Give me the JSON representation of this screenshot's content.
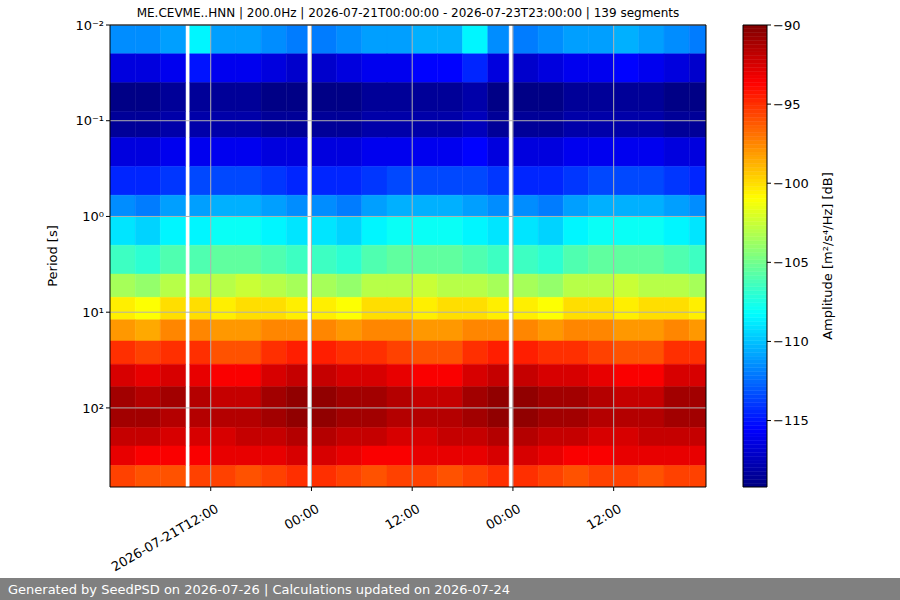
{
  "chart_data": {
    "type": "heatmap",
    "title": "ME.CEVME..HNN | 200.0Hz | 2026-07-21T00:00:00 - 2026-07-23T23:00:00 | 139 segments",
    "footer": "Generated by SeedPSD on 2026-07-26 | Calculations updated on 2026-07-24",
    "y_label": "Period [s]",
    "log": "y",
    "grid": true,
    "xlim": [
      "2026-07-21T00:00",
      "2026-07-23T23:00"
    ],
    "xticks": [
      {
        "value": "2026-07-21T12:00",
        "label": "2026-07-21T12:00"
      },
      {
        "value": "2026-07-22T00:00",
        "label": "00:00"
      },
      {
        "value": "2026-07-22T12:00",
        "label": "12:00"
      },
      {
        "value": "2026-07-23T00:00",
        "label": "00:00"
      },
      {
        "value": "2026-07-23T12:00",
        "label": "12:00"
      }
    ],
    "ylim": [
      670,
      0.01
    ],
    "yticks": [
      {
        "value": 0.01,
        "label": "10⁻²"
      },
      {
        "value": 0.1,
        "label": "10⁻¹"
      },
      {
        "value": 1,
        "label": "10⁰"
      },
      {
        "value": 10,
        "label": "10¹"
      },
      {
        "value": 100,
        "label": "10²"
      }
    ],
    "x_edges": [
      "2026-07-21T00:00",
      "2026-07-21T03:00",
      "2026-07-21T06:00",
      "2026-07-21T09:00",
      "2026-07-21T09:30",
      "2026-07-21T12:00",
      "2026-07-21T15:00",
      "2026-07-21T18:00",
      "2026-07-21T21:00",
      "2026-07-21T23:30",
      "2026-07-22T00:00",
      "2026-07-22T03:00",
      "2026-07-22T06:00",
      "2026-07-22T09:00",
      "2026-07-22T12:00",
      "2026-07-22T15:00",
      "2026-07-22T18:00",
      "2026-07-22T21:00",
      "2026-07-22T23:30",
      "2026-07-23T00:00",
      "2026-07-23T03:00",
      "2026-07-23T06:00",
      "2026-07-23T09:00",
      "2026-07-23T12:00",
      "2026-07-23T15:00",
      "2026-07-23T18:00",
      "2026-07-23T21:00",
      "2026-07-23T23:00"
    ],
    "y_edges": [
      0.01,
      0.02,
      0.04,
      0.08,
      0.15,
      0.3,
      0.6,
      1,
      2,
      4,
      7,
      12,
      20,
      35,
      60,
      100,
      160,
      250,
      400,
      670
    ],
    "cells": [
      [
        -111.5,
        -111.5,
        -111,
        null,
        -108.5,
        -111,
        -111,
        -111.5,
        -112,
        null,
        -112,
        -111.5,
        -111,
        -111,
        -110.5,
        -110.5,
        -108.5,
        -111.5,
        null,
        -112,
        -111.5,
        -111,
        -111,
        -110.5,
        -111,
        -111.5,
        -112
      ],
      [
        -116.5,
        -116.5,
        -116,
        null,
        -115,
        -116,
        -116,
        -116.5,
        -117,
        null,
        -117,
        -116.5,
        -116,
        -116,
        -115.5,
        -115.5,
        -114.5,
        -116.5,
        null,
        -117,
        -116.5,
        -116,
        -116,
        -115.5,
        -116,
        -116.5,
        -117
      ],
      [
        -119,
        -119,
        -118.5,
        null,
        -118.5,
        -118.5,
        -118.5,
        -119,
        -119,
        null,
        -119,
        -119,
        -118.5,
        -118.5,
        -118.5,
        -118.5,
        -118,
        -119,
        null,
        -119,
        -119,
        -118.5,
        -118.5,
        -118.5,
        -118.5,
        -119,
        -119
      ],
      [
        -118.5,
        -118.5,
        -118,
        null,
        -118,
        -118,
        -118,
        -118.5,
        -118.5,
        null,
        -118.5,
        -118.5,
        -118,
        -118,
        -118,
        -118,
        -117.5,
        -118.5,
        null,
        -118.5,
        -118.5,
        -118,
        -118,
        -118,
        -118,
        -118.5,
        -118.5
      ],
      [
        -116.5,
        -116.5,
        -116,
        null,
        -116,
        -116,
        -116,
        -116.5,
        -116.5,
        null,
        -116.5,
        -116.5,
        -116,
        -116,
        -116,
        -116,
        -115.5,
        -116.5,
        null,
        -116.5,
        -116.5,
        -116,
        -116,
        -116,
        -116,
        -116.5,
        -116.5
      ],
      [
        -114.5,
        -114.5,
        -114,
        null,
        -113.5,
        -113.5,
        -113.5,
        -114,
        -114.5,
        null,
        -114.5,
        -114.5,
        -114,
        -113.5,
        -113.5,
        -113.5,
        -113.5,
        -114,
        null,
        -114.5,
        -114.5,
        -114,
        -113.5,
        -113.5,
        -113.5,
        -114,
        -114.5
      ],
      [
        -111.5,
        -112,
        -111,
        null,
        -111,
        -110.5,
        -110.5,
        -111,
        -111.5,
        null,
        -111.5,
        -112,
        -111,
        -110.5,
        -110.5,
        -110.5,
        -111,
        -111.5,
        null,
        -111.5,
        -112,
        -111,
        -110.5,
        -110.5,
        -110.5,
        -111,
        -111.5
      ],
      [
        -109,
        -109.5,
        -108.5,
        null,
        -108.5,
        -108,
        -108,
        -108.5,
        -109,
        null,
        -109,
        -109.5,
        -108.5,
        -108,
        -108,
        -108,
        -108.5,
        -109,
        null,
        -109,
        -109.5,
        -108.5,
        -108,
        -108,
        -108,
        -108.5,
        -109
      ],
      [
        -106.5,
        -107,
        -106,
        null,
        -106,
        -105.5,
        -105.5,
        -106,
        -106.5,
        null,
        -106.5,
        -107,
        -106,
        -105.5,
        -105.5,
        -105.5,
        -106,
        -106.5,
        null,
        -106.5,
        -107,
        -106,
        -105.5,
        -105.5,
        -105.5,
        -106,
        -106.5
      ],
      [
        -103.5,
        -104,
        -103,
        null,
        -103,
        -103,
        -102.5,
        -103,
        -103.5,
        null,
        -103.5,
        -104,
        -103,
        -103,
        -102.5,
        -103,
        -103,
        -103.5,
        null,
        -103.5,
        -104,
        -103,
        -103,
        -102.5,
        -103,
        -103,
        -103.5
      ],
      [
        -100.5,
        -101,
        -100,
        null,
        -100,
        -100.5,
        -100,
        -100,
        -100.5,
        null,
        -100.5,
        -101,
        -100,
        -100,
        -100.5,
        -100,
        -100,
        -100.5,
        null,
        -100.5,
        -101,
        -100,
        -100,
        -100.5,
        -100,
        -100,
        -100.5
      ],
      [
        -98,
        -98.5,
        -97.5,
        null,
        -97.5,
        -98,
        -98,
        -97.5,
        -97.5,
        null,
        -97.5,
        -98,
        -97.5,
        -97.5,
        -98,
        -98,
        -97.5,
        -97.5,
        null,
        -97.5,
        -98,
        -97.5,
        -97.5,
        -98,
        -98,
        -97.5,
        -98
      ],
      [
        -95,
        -95.5,
        -95,
        null,
        -95,
        -96,
        -96,
        -95,
        -94.5,
        null,
        -94.5,
        -95,
        -95,
        -95.5,
        -96,
        -96,
        -95,
        -94.5,
        null,
        -94.5,
        -95,
        -95,
        -95.5,
        -96,
        -96,
        -95,
        -95
      ],
      [
        -92.5,
        -93,
        -92.5,
        null,
        -93,
        -93.5,
        -93.5,
        -92.5,
        -92,
        null,
        -92,
        -92.5,
        -92.5,
        -93,
        -93.5,
        -93.5,
        -92.5,
        -92,
        null,
        -92,
        -92.5,
        -92.5,
        -93,
        -93.5,
        -93.5,
        -92.5,
        -92.5
      ],
      [
        -91,
        -91.5,
        -91,
        null,
        -91.5,
        -92,
        -92,
        -91,
        -90.5,
        null,
        -90.5,
        -91,
        -91,
        -91.5,
        -92,
        -92,
        -91,
        -90.5,
        null,
        -90.5,
        -91,
        -91,
        -91.5,
        -92,
        -92,
        -91,
        -91
      ],
      [
        -91,
        -91,
        -91.5,
        null,
        -91.5,
        -91.5,
        -91.5,
        -91,
        -90.5,
        null,
        -90.5,
        -91,
        -91,
        -91.5,
        -91.5,
        -91.5,
        -91,
        -90.5,
        null,
        -90.5,
        -91,
        -91,
        -91.5,
        -91.5,
        -91.5,
        -91,
        -91
      ],
      [
        -92,
        -92,
        -92.5,
        null,
        -92.5,
        -92.5,
        -92,
        -92,
        -91.5,
        null,
        -91.5,
        -92,
        -92,
        -92.5,
        -92.5,
        -92,
        -92,
        -91.5,
        null,
        -91.5,
        -92,
        -92,
        -92.5,
        -92.5,
        -92,
        -92,
        -92
      ],
      [
        -93,
        -93.5,
        -93.5,
        null,
        -93.5,
        -93,
        -93,
        -93,
        -92.5,
        null,
        -92.5,
        -93,
        -93.5,
        -93.5,
        -93,
        -93,
        -93,
        -92.5,
        null,
        -92.5,
        -93,
        -93.5,
        -93.5,
        -93,
        -93,
        -93,
        -93
      ],
      [
        -95.5,
        -96,
        -96,
        null,
        -95.5,
        -95.5,
        -96,
        -95.5,
        -95,
        null,
        -95,
        -95.5,
        -96,
        -95.5,
        -95.5,
        -96,
        -95.5,
        -95,
        null,
        -95,
        -95.5,
        -96,
        -95.5,
        -95.5,
        -96,
        -95.5,
        -95.5
      ]
    ],
    "colorbar": {
      "label": "Amplitude [m²/s⁴/Hz] [dB]",
      "range": [
        -119.2,
        -90
      ],
      "ticks": [
        {
          "value": -90,
          "label": "−90"
        },
        {
          "value": -95,
          "label": "−95"
        },
        {
          "value": -100,
          "label": "−100"
        },
        {
          "value": -105,
          "label": "−105"
        },
        {
          "value": -110,
          "label": "−110"
        },
        {
          "value": -115,
          "label": "−115"
        }
      ]
    }
  }
}
